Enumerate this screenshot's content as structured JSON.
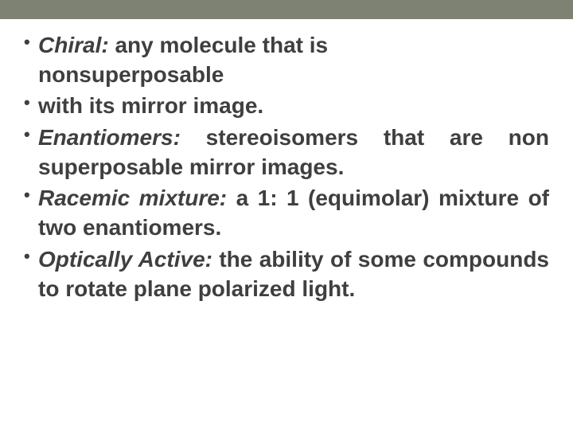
{
  "slide": {
    "top_bar_color": "#7d8272",
    "background_color": "#ffffff",
    "text_color": "#3f3f3f",
    "font_size_pt": 28,
    "bullets": [
      {
        "term": "Chiral:",
        "rest_line1": " any molecule that is",
        "cont": "nonsuperposable"
      },
      {
        "full": "with its mirror image."
      },
      {
        "term": "Enantiomers:",
        "rest": " stereoisomers that are non superposable mirror images."
      },
      {
        "term": "Racemic mixture:",
        "rest": " a 1: 1 (equimolar) mixture of two enantiomers."
      },
      {
        "term": "Optically Active:",
        "rest": " the ability of some compounds to rotate plane polarized light."
      }
    ]
  }
}
